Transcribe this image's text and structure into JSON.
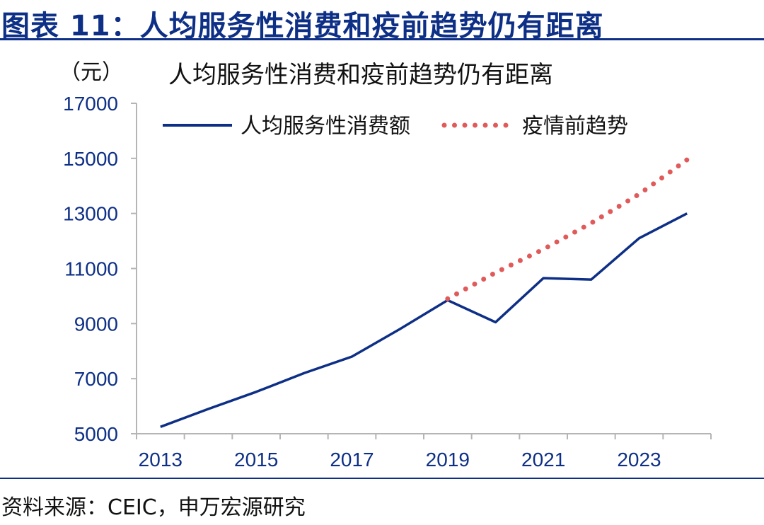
{
  "header": {
    "title": "图表 11：人均服务性消费和疫前趋势仍有距离"
  },
  "footer": {
    "source": "资料来源：CEIC，申万宏源研究"
  },
  "chart_data": {
    "type": "line",
    "title": "人均服务性消费和疫前趋势仍有距离",
    "ylabel": "（元）",
    "xlabel": "",
    "ylim": [
      5000,
      17000
    ],
    "xlim": [
      2012.5,
      2024.5
    ],
    "yticks": [
      5000,
      7000,
      9000,
      11000,
      13000,
      15000,
      17000
    ],
    "xticks": [
      2013,
      2015,
      2017,
      2019,
      2021,
      2023
    ],
    "grid": false,
    "legend": {
      "placement": "top",
      "entries": [
        "人均服务性消费额",
        "疫情前趋势"
      ]
    },
    "colors": {
      "actual": "#0d2f86",
      "trend": "#e05a5a",
      "axis": "#b5b5b5",
      "ticks": "#0d2f86"
    },
    "series": [
      {
        "name": "人均服务性消费额",
        "style": "solid",
        "x": [
          2013,
          2014,
          2015,
          2016,
          2017,
          2018,
          2019,
          2020,
          2021,
          2022,
          2023,
          2024
        ],
        "values": [
          5250,
          5900,
          6520,
          7200,
          7800,
          8800,
          9850,
          9050,
          10650,
          10600,
          12100,
          13000
        ]
      },
      {
        "name": "疫情前趋势",
        "style": "dotted",
        "x": [
          2019,
          2020,
          2021,
          2022,
          2023,
          2024
        ],
        "values": [
          9900,
          10850,
          11700,
          12650,
          13700,
          14950
        ]
      }
    ]
  }
}
